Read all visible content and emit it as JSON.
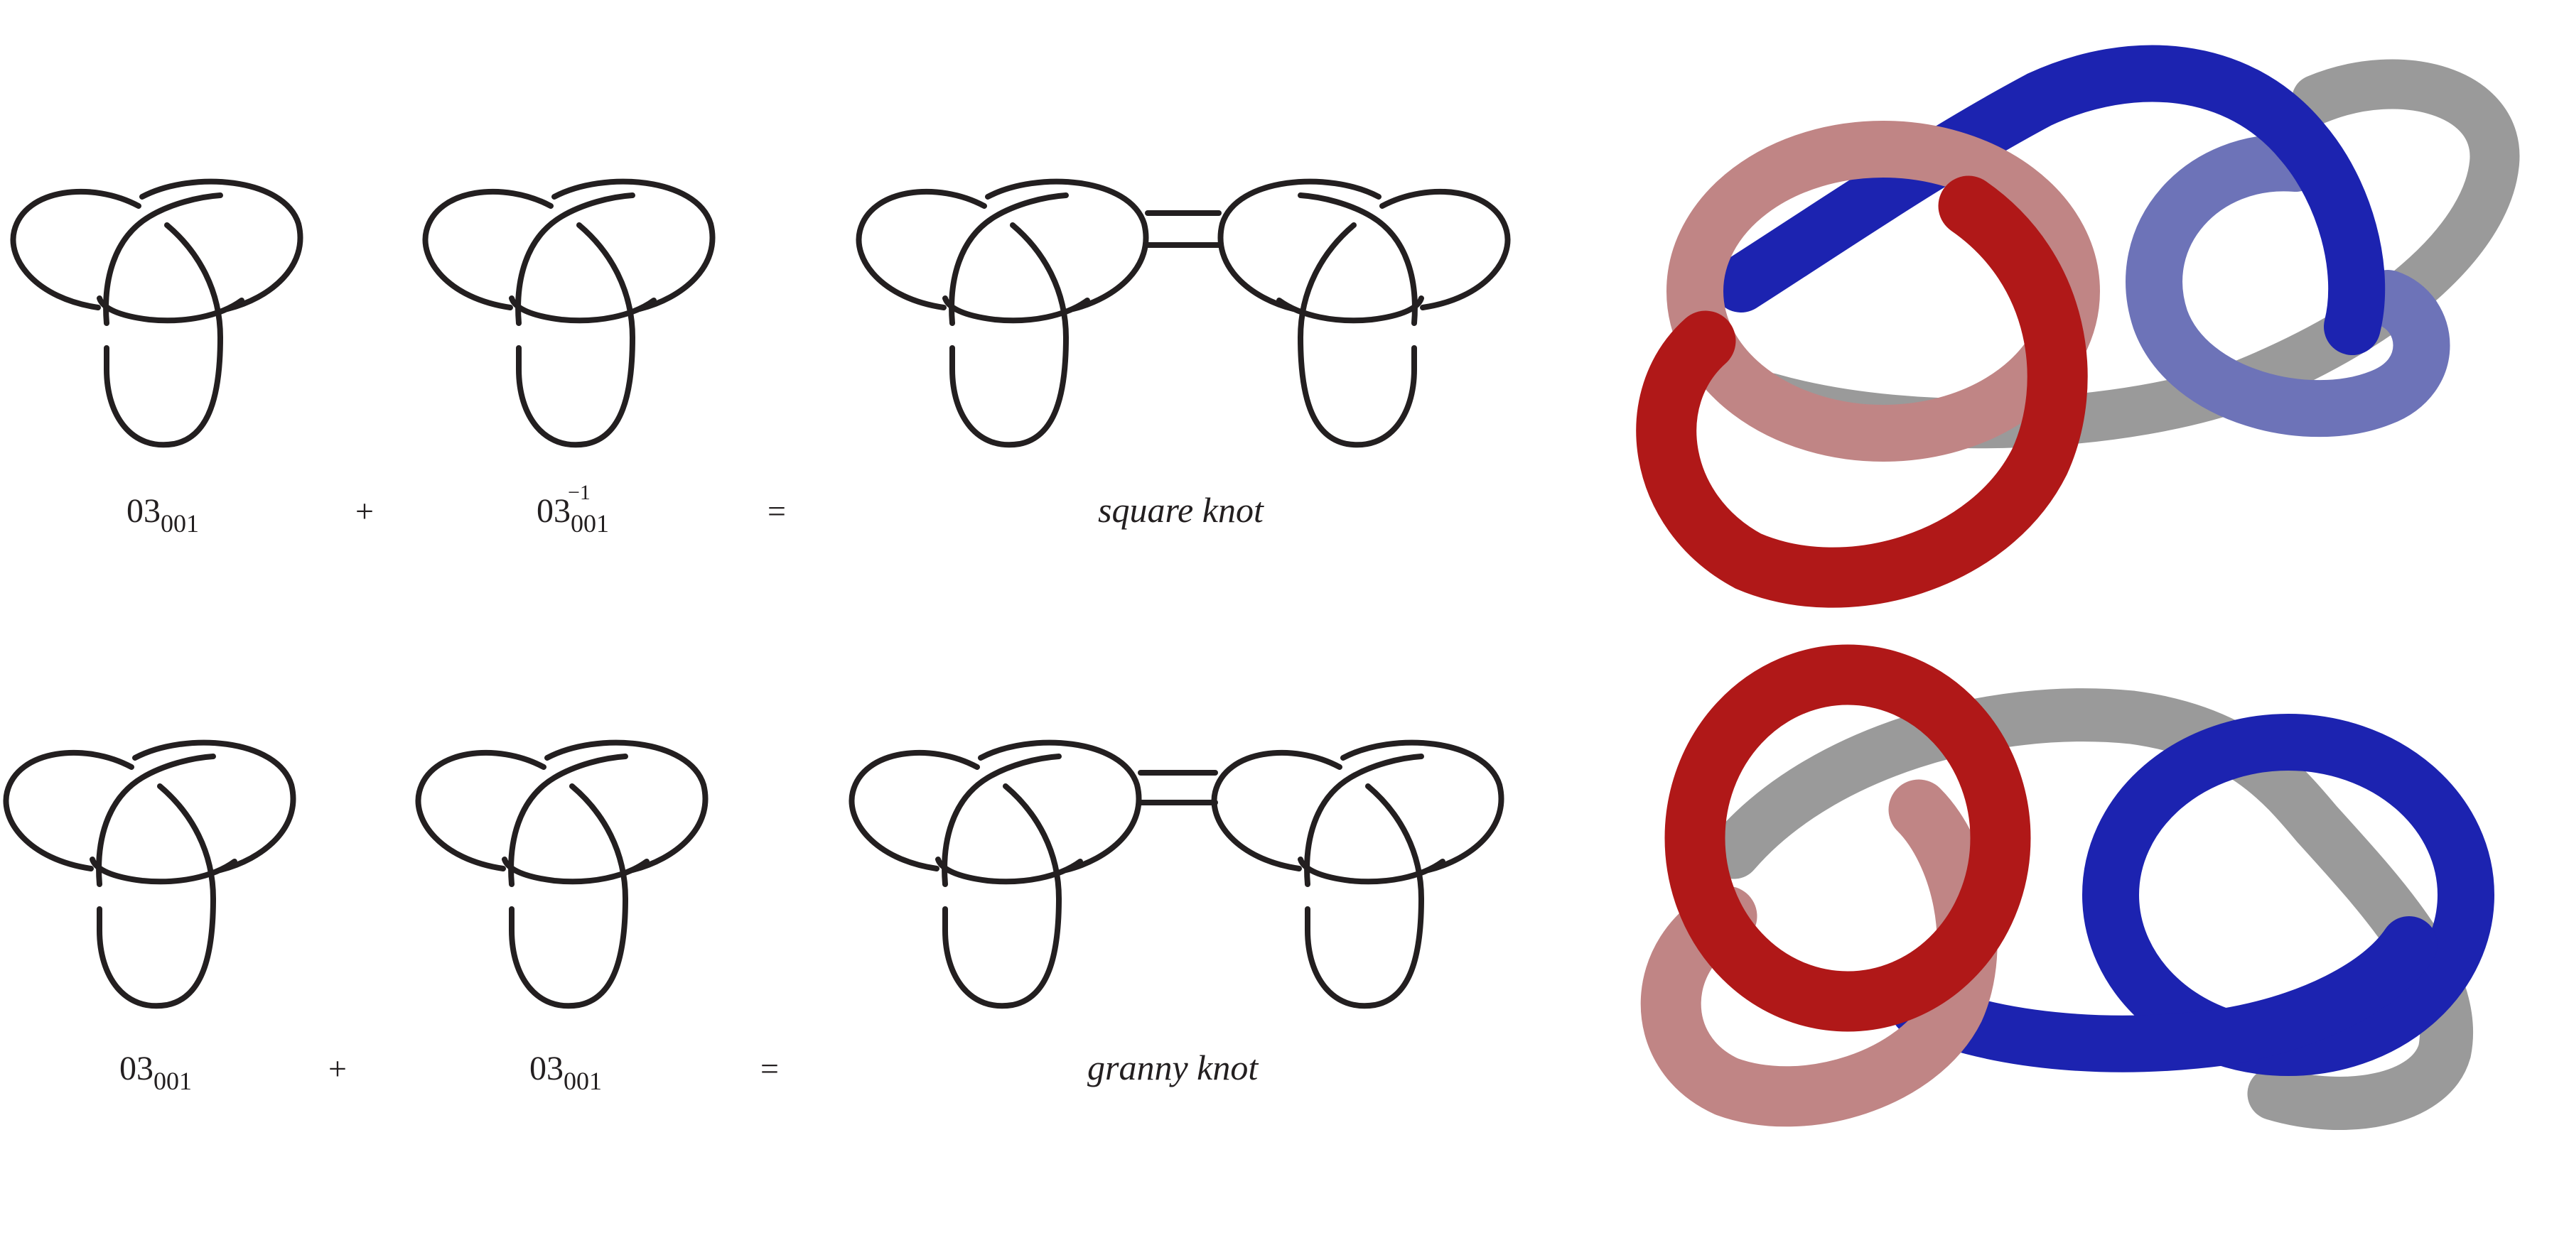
{
  "row_top": {
    "left_label": {
      "base": "03",
      "sub": "001",
      "sup": ""
    },
    "plus": "+",
    "middle_label": {
      "base": "03",
      "sub": "001",
      "sup": "−1"
    },
    "equals": "=",
    "result_label": "square knot"
  },
  "row_bottom": {
    "left_label": {
      "base": "03",
      "sub": "001",
      "sup": ""
    },
    "plus": "+",
    "middle_label": {
      "base": "03",
      "sub": "001",
      "sup": ""
    },
    "equals": "=",
    "result_label": "granny knot"
  },
  "colors": {
    "stroke": "#231f20",
    "tube_red": "#b01818",
    "tube_pink": "#c08585",
    "tube_grey": "#9a9a9a",
    "tube_blue": "#1c23b0",
    "tube_lightblue": "#6d73b8"
  }
}
